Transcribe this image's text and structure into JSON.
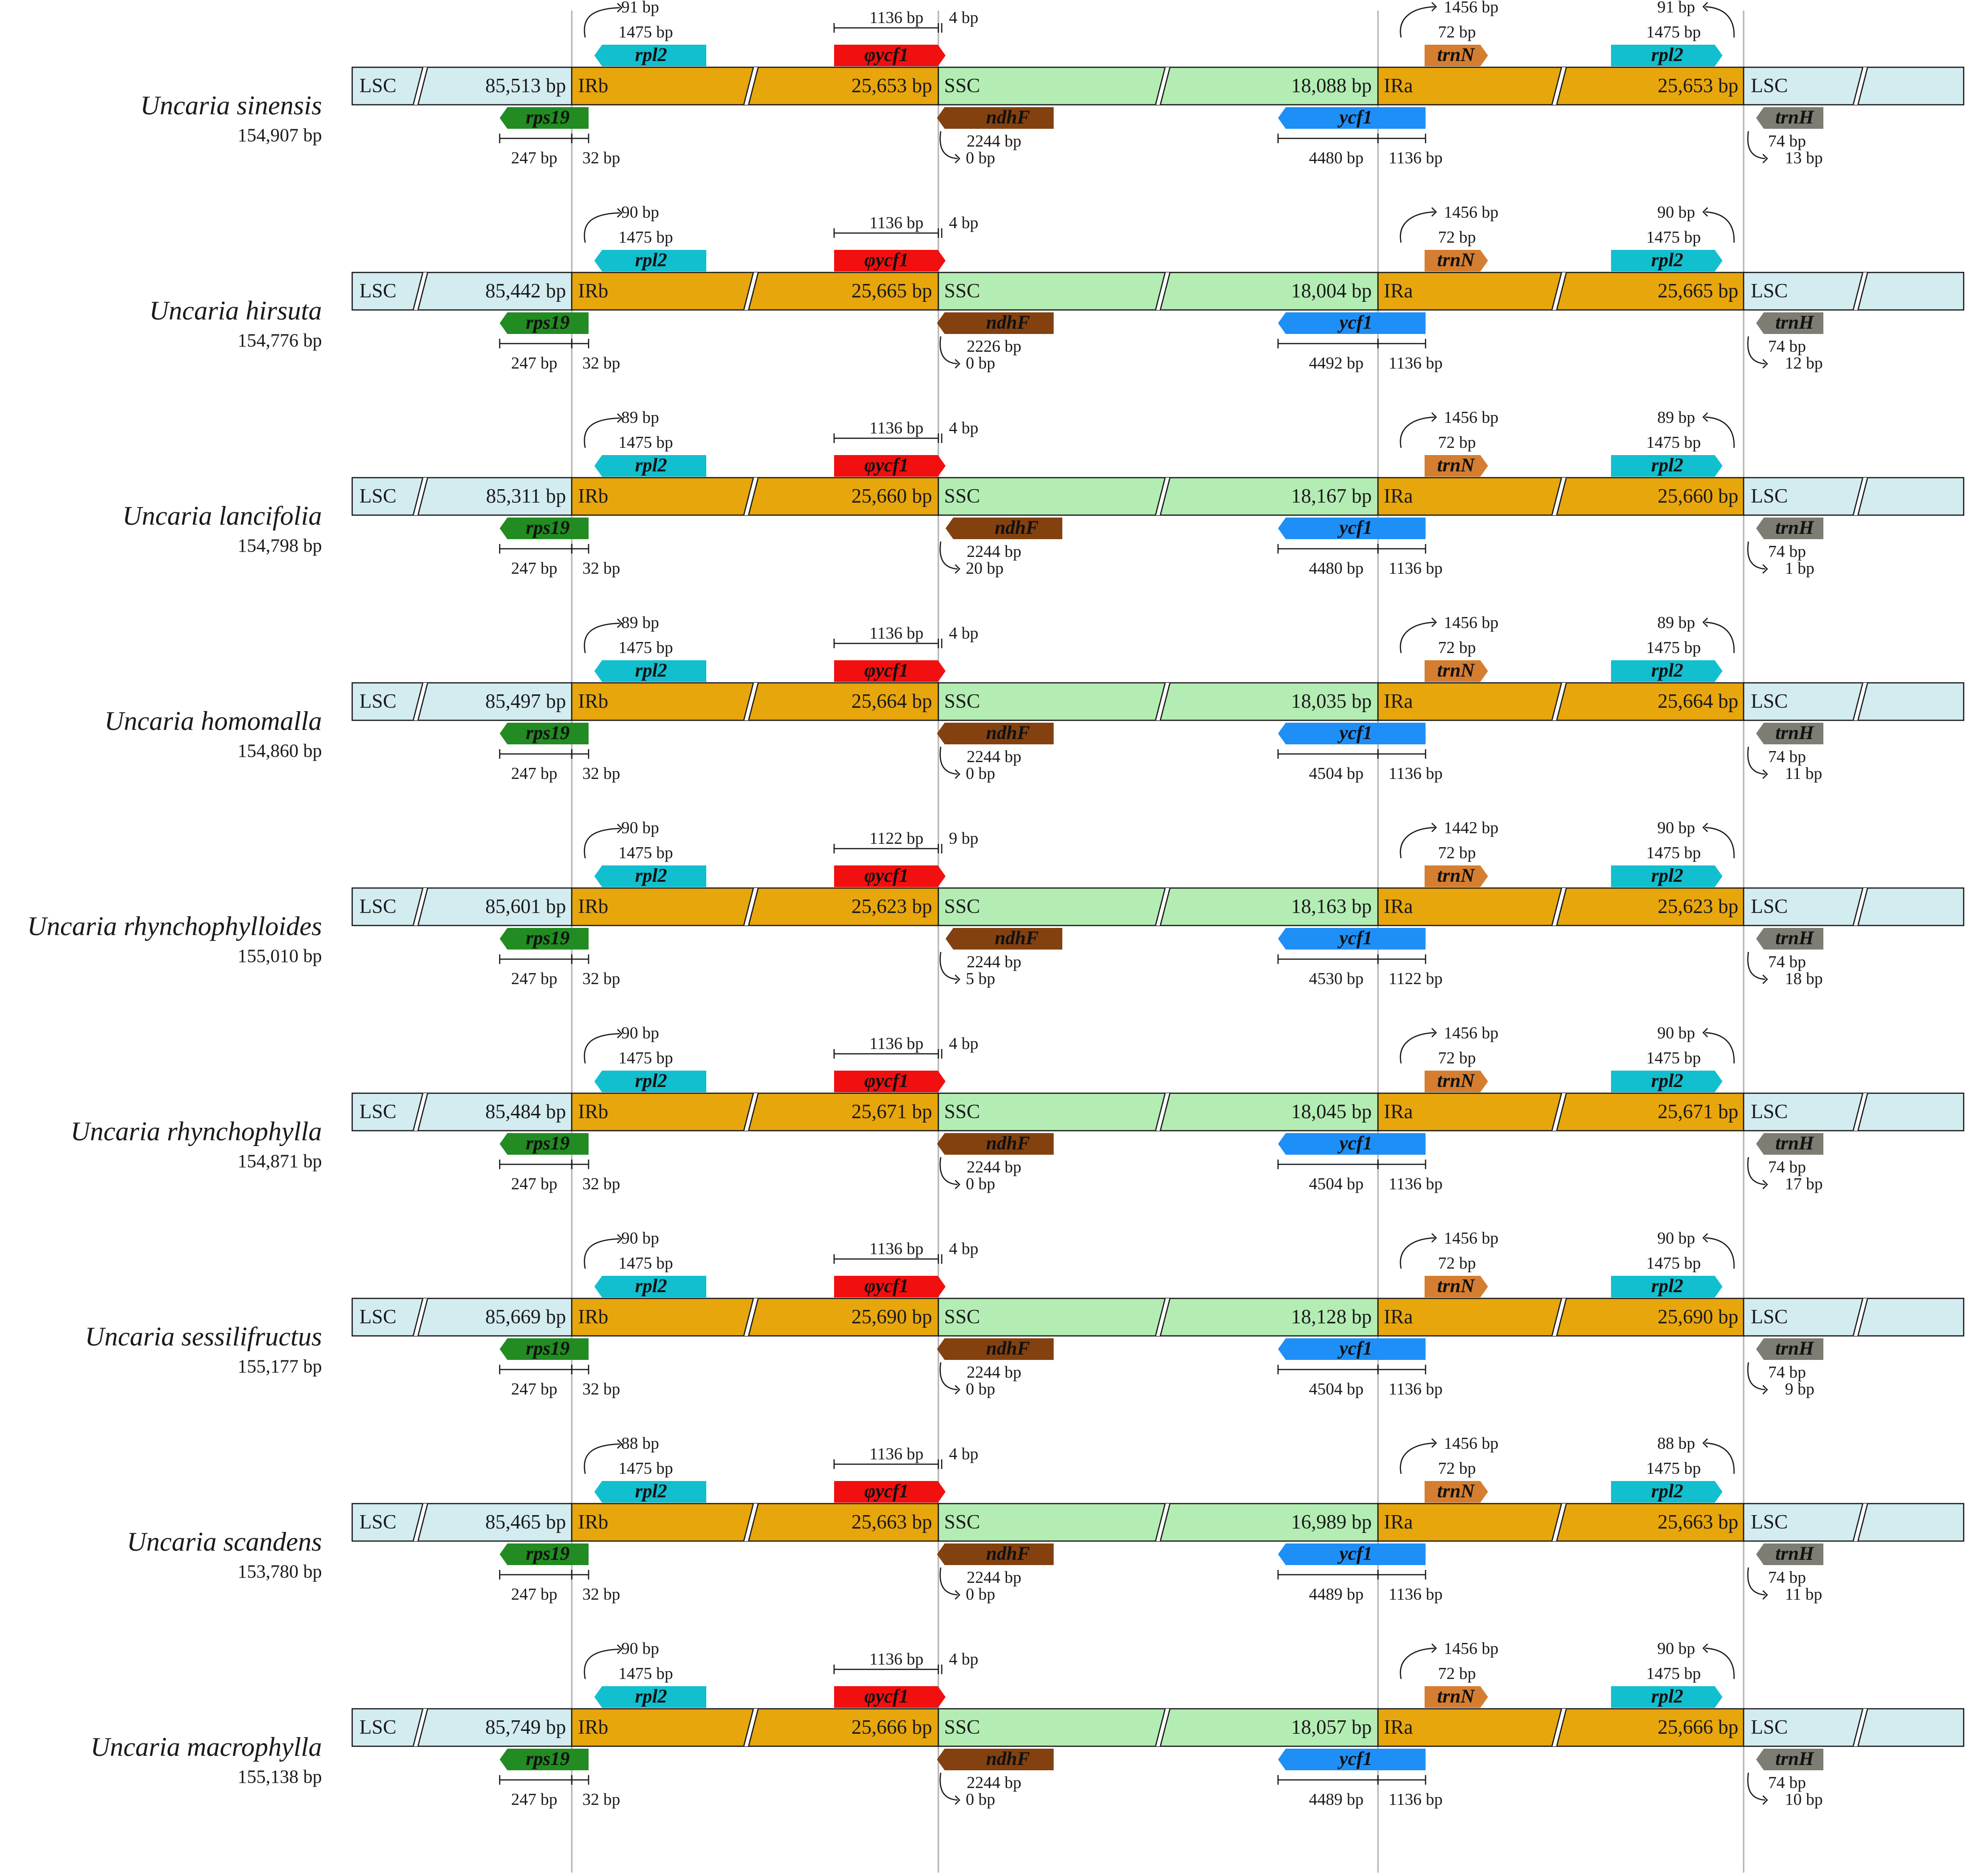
{
  "colors": {
    "lsc": "#d3ecf0",
    "ir": "#e8a60d",
    "ssc": "#b4edb3",
    "rpl2": "#12bfcf",
    "ycf1_pseudo": "#f20f0f",
    "trnN": "#d57e31",
    "rps19": "#228b22",
    "ndhF": "#834110",
    "ycf1": "#1e8ff6",
    "trnH": "#7d7d73",
    "boundary_line": "#b3b3b3",
    "outline": "#1a1a1a"
  },
  "labels": {
    "lsc": "LSC",
    "irb": "IRb",
    "ssc": "SSC",
    "ira": "IRa"
  },
  "genes": {
    "rpl2": "rpl2",
    "ycf1_pseudo": "φycf1",
    "trnN": "trnN",
    "rps19": "rps19",
    "ndhF": "ndhF",
    "ycf1": "ycf1",
    "trnH": "trnH"
  },
  "species": [
    {
      "name": "Uncaria sinensis",
      "length": "154,907 bp",
      "lsc": "85,513 bp",
      "ir": "25,653 bp",
      "ssc": "18,088 bp",
      "top": {
        "rpl2_over": "91 bp",
        "rpl2_len": "1475 bp",
        "pycf1_len": "1136 bp",
        "pycf1_over": "4 bp",
        "trnN_over": "1456 bp",
        "trnN_len": "72 bp",
        "rpl2b_over": "91 bp",
        "rpl2b_len": "1475 bp"
      },
      "bottom": {
        "rps19_lsc": "247 bp",
        "rps19_ir": "32 bp",
        "ndhF_len": "2244 bp",
        "ndhF_gap": "0 bp",
        "ycf1_ssc": "4480 bp",
        "ycf1_ir": "1136 bp",
        "trnH_len": "74 bp",
        "trnH_gap": "13 bp"
      }
    },
    {
      "name": "Uncaria hirsuta",
      "length": "154,776 bp",
      "lsc": "85,442 bp",
      "ir": "25,665 bp",
      "ssc": "18,004 bp",
      "top": {
        "rpl2_over": "90 bp",
        "rpl2_len": "1475 bp",
        "pycf1_len": "1136 bp",
        "pycf1_over": "4 bp",
        "trnN_over": "1456 bp",
        "trnN_len": "72 bp",
        "rpl2b_over": "90 bp",
        "rpl2b_len": "1475 bp"
      },
      "bottom": {
        "rps19_lsc": "247 bp",
        "rps19_ir": "32 bp",
        "ndhF_len": "2226 bp",
        "ndhF_gap": "0 bp",
        "ycf1_ssc": "4492 bp",
        "ycf1_ir": "1136 bp",
        "trnH_len": "74 bp",
        "trnH_gap": "12 bp"
      }
    },
    {
      "name": "Uncaria lancifolia",
      "length": "154,798 bp",
      "lsc": "85,311 bp",
      "ir": "25,660 bp",
      "ssc": "18,167 bp",
      "top": {
        "rpl2_over": "89 bp",
        "rpl2_len": "1475 bp",
        "pycf1_len": "1136 bp",
        "pycf1_over": "4 bp",
        "trnN_over": "1456 bp",
        "trnN_len": "72 bp",
        "rpl2b_over": "89 bp",
        "rpl2b_len": "1475 bp"
      },
      "bottom": {
        "rps19_lsc": "247 bp",
        "rps19_ir": "32 bp",
        "ndhF_len": "2244 bp",
        "ndhF_gap": "20 bp",
        "ycf1_ssc": "4480 bp",
        "ycf1_ir": "1136 bp",
        "trnH_len": "74 bp",
        "trnH_gap": "1 bp"
      }
    },
    {
      "name": "Uncaria homomalla",
      "length": "154,860 bp",
      "lsc": "85,497 bp",
      "ir": "25,664 bp",
      "ssc": "18,035 bp",
      "top": {
        "rpl2_over": "89 bp",
        "rpl2_len": "1475 bp",
        "pycf1_len": "1136 bp",
        "pycf1_over": "4 bp",
        "trnN_over": "1456 bp",
        "trnN_len": "72 bp",
        "rpl2b_over": "89 bp",
        "rpl2b_len": "1475 bp"
      },
      "bottom": {
        "rps19_lsc": "247 bp",
        "rps19_ir": "32 bp",
        "ndhF_len": "2244 bp",
        "ndhF_gap": "0 bp",
        "ycf1_ssc": "4504 bp",
        "ycf1_ir": "1136 bp",
        "trnH_len": "74 bp",
        "trnH_gap": "11 bp"
      }
    },
    {
      "name": "Uncaria rhynchophylloides",
      "length": "155,010 bp",
      "lsc": "85,601 bp",
      "ir": "25,623 bp",
      "ssc": "18,163 bp",
      "top": {
        "rpl2_over": "90 bp",
        "rpl2_len": "1475 bp",
        "pycf1_len": "1122 bp",
        "pycf1_over": "9 bp",
        "trnN_over": "1442 bp",
        "trnN_len": "72 bp",
        "rpl2b_over": "90 bp",
        "rpl2b_len": "1475 bp"
      },
      "bottom": {
        "rps19_lsc": "247 bp",
        "rps19_ir": "32 bp",
        "ndhF_len": "2244 bp",
        "ndhF_gap": "5 bp",
        "ycf1_ssc": "4530 bp",
        "ycf1_ir": "1122 bp",
        "trnH_len": "74 bp",
        "trnH_gap": "18 bp"
      }
    },
    {
      "name": "Uncaria rhynchophylla",
      "length": "154,871 bp",
      "lsc": "85,484 bp",
      "ir": "25,671 bp",
      "ssc": "18,045 bp",
      "top": {
        "rpl2_over": "90 bp",
        "rpl2_len": "1475 bp",
        "pycf1_len": "1136 bp",
        "pycf1_over": "4 bp",
        "trnN_over": "1456 bp",
        "trnN_len": "72 bp",
        "rpl2b_over": "90 bp",
        "rpl2b_len": "1475 bp"
      },
      "bottom": {
        "rps19_lsc": "247 bp",
        "rps19_ir": "32 bp",
        "ndhF_len": "2244 bp",
        "ndhF_gap": "0 bp",
        "ycf1_ssc": "4504 bp",
        "ycf1_ir": "1136 bp",
        "trnH_len": "74 bp",
        "trnH_gap": "17 bp"
      }
    },
    {
      "name": "Uncaria sessilifructus",
      "length": "155,177 bp",
      "lsc": "85,669 bp",
      "ir": "25,690 bp",
      "ssc": "18,128 bp",
      "top": {
        "rpl2_over": "90 bp",
        "rpl2_len": "1475 bp",
        "pycf1_len": "1136 bp",
        "pycf1_over": "4 bp",
        "trnN_over": "1456 bp",
        "trnN_len": "72 bp",
        "rpl2b_over": "90 bp",
        "rpl2b_len": "1475 bp"
      },
      "bottom": {
        "rps19_lsc": "247 bp",
        "rps19_ir": "32 bp",
        "ndhF_len": "2244 bp",
        "ndhF_gap": "0 bp",
        "ycf1_ssc": "4504 bp",
        "ycf1_ir": "1136 bp",
        "trnH_len": "74 bp",
        "trnH_gap": "9 bp"
      }
    },
    {
      "name": "Uncaria scandens",
      "length": "153,780 bp",
      "lsc": "85,465 bp",
      "ir": "25,663 bp",
      "ssc": "16,989 bp",
      "top": {
        "rpl2_over": "88 bp",
        "rpl2_len": "1475 bp",
        "pycf1_len": "1136 bp",
        "pycf1_over": "4 bp",
        "trnN_over": "1456 bp",
        "trnN_len": "72 bp",
        "rpl2b_over": "88 bp",
        "rpl2b_len": "1475 bp"
      },
      "bottom": {
        "rps19_lsc": "247 bp",
        "rps19_ir": "32 bp",
        "ndhF_len": "2244 bp",
        "ndhF_gap": "0 bp",
        "ycf1_ssc": "4489 bp",
        "ycf1_ir": "1136 bp",
        "trnH_len": "74 bp",
        "trnH_gap": "11 bp"
      }
    },
    {
      "name": "Uncaria macrophylla",
      "length": "155,138 bp",
      "lsc": "85,749 bp",
      "ir": "25,666 bp",
      "ssc": "18,057 bp",
      "top": {
        "rpl2_over": "90 bp",
        "rpl2_len": "1475 bp",
        "pycf1_len": "1136 bp",
        "pycf1_over": "4 bp",
        "trnN_over": "1456 bp",
        "trnN_len": "72 bp",
        "rpl2b_over": "90 bp",
        "rpl2b_len": "1475 bp"
      },
      "bottom": {
        "rps19_lsc": "247 bp",
        "rps19_ir": "32 bp",
        "ndhF_len": "2244 bp",
        "ndhF_gap": "0 bp",
        "ycf1_ssc": "4489 bp",
        "ycf1_ir": "1136 bp",
        "trnH_len": "74 bp",
        "trnH_gap": "10 bp"
      }
    }
  ]
}
